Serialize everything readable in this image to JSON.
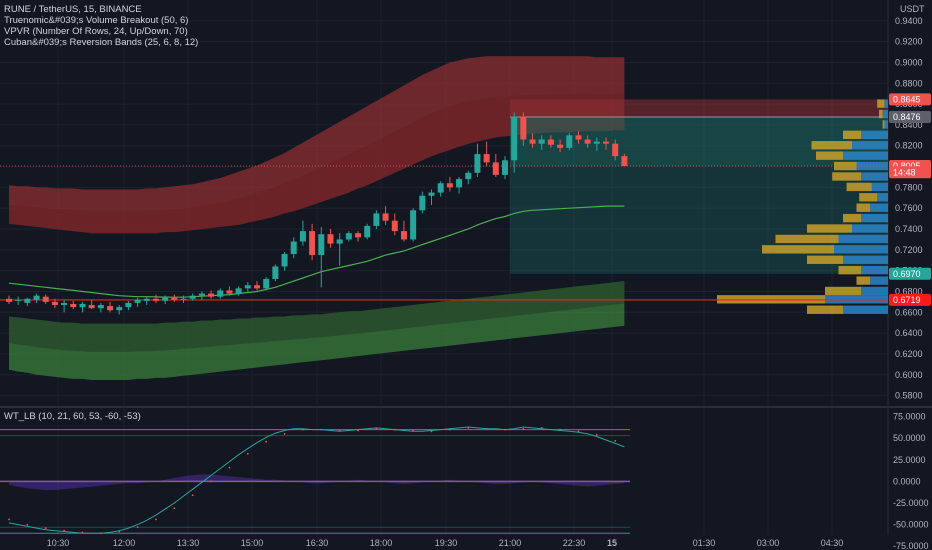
{
  "legend": {
    "symbol_line": "RUNE / TetherUS, 15, BINANCE",
    "ind1": "Truenomic&#039;s Volume Breakout (50, 6)",
    "ind2": "VPVR (Number Of Rows, 24, Up/Down, 70)",
    "ind3": "Cuban&#039;s Reversion Bands (25, 6, 8, 12)",
    "osc": "WT_LB (10, 21, 60, 53, -60, -53)"
  },
  "currency": "USDT",
  "colors": {
    "background": "#131722",
    "up": "#26a69a",
    "down": "#ef5350",
    "grid": "#1e222d",
    "upper_band": "#8c2f33",
    "lower_band": "#3a7d3a",
    "vp_up": "#2a7fc0",
    "vp_down": "#c8a02a",
    "ma_line": "#4caf50",
    "level_line": "#ff1a1a"
  },
  "price_badges": [
    {
      "label": "0.8645",
      "value": 0.8645,
      "color": "#ef5350"
    },
    {
      "label": "0.8476",
      "value": 0.8476,
      "color": "#5d606b"
    },
    {
      "label": "0.8005",
      "value": 0.8005,
      "color": "#ef5350"
    },
    {
      "label": "14:48",
      "value": 0.7945,
      "color": "#ef5350"
    },
    {
      "label": "0.6970",
      "value": 0.697,
      "color": "#26a69a"
    },
    {
      "label": "0.6719",
      "value": 0.6719,
      "color": "#ff1a1a"
    }
  ],
  "chart_data": [
    {
      "type": "candlestick",
      "title": "RUNE / TetherUS, 15, BINANCE",
      "ylim": [
        0.57,
        0.96
      ],
      "y_ticks": [
        "0.9400",
        "0.9200",
        "0.9000",
        "0.8800",
        "0.8600",
        "0.8400",
        "0.8200",
        "0.8000",
        "0.7800",
        "0.7600",
        "0.7400",
        "0.7200",
        "0.7000",
        "0.6800",
        "0.6600",
        "0.6400",
        "0.6200",
        "0.6000",
        "0.5800"
      ],
      "x_ticks": [
        "10:30",
        "12:00",
        "13:30",
        "15:00",
        "16:30",
        "18:00",
        "19:30",
        "21:00",
        "22:30",
        "15",
        "01:30",
        "03:00",
        "04:30"
      ],
      "ohlc": [
        [
          0.673,
          0.676,
          0.668,
          0.67
        ],
        [
          0.671,
          0.675,
          0.667,
          0.672
        ],
        [
          0.669,
          0.674,
          0.666,
          0.673
        ],
        [
          0.672,
          0.678,
          0.669,
          0.676
        ],
        [
          0.675,
          0.677,
          0.668,
          0.67
        ],
        [
          0.67,
          0.673,
          0.664,
          0.667
        ],
        [
          0.667,
          0.672,
          0.66,
          0.669
        ],
        [
          0.668,
          0.671,
          0.663,
          0.665
        ],
        [
          0.665,
          0.67,
          0.66,
          0.668
        ],
        [
          0.667,
          0.672,
          0.663,
          0.664
        ],
        [
          0.664,
          0.669,
          0.66,
          0.667
        ],
        [
          0.666,
          0.67,
          0.66,
          0.662
        ],
        [
          0.662,
          0.667,
          0.658,
          0.665
        ],
        [
          0.665,
          0.671,
          0.662,
          0.669
        ],
        [
          0.669,
          0.674,
          0.665,
          0.672
        ],
        [
          0.671,
          0.675,
          0.667,
          0.673
        ],
        [
          0.673,
          0.677,
          0.669,
          0.671
        ],
        [
          0.671,
          0.676,
          0.668,
          0.674
        ],
        [
          0.674,
          0.677,
          0.67,
          0.672
        ],
        [
          0.672,
          0.676,
          0.669,
          0.673
        ],
        [
          0.673,
          0.678,
          0.671,
          0.676
        ],
        [
          0.676,
          0.68,
          0.672,
          0.678
        ],
        [
          0.678,
          0.681,
          0.673,
          0.675
        ],
        [
          0.675,
          0.683,
          0.673,
          0.681
        ],
        [
          0.681,
          0.685,
          0.676,
          0.678
        ],
        [
          0.678,
          0.685,
          0.676,
          0.683
        ],
        [
          0.683,
          0.689,
          0.68,
          0.686
        ],
        [
          0.686,
          0.69,
          0.681,
          0.683
        ],
        [
          0.683,
          0.694,
          0.681,
          0.692
        ],
        [
          0.692,
          0.706,
          0.69,
          0.704
        ],
        [
          0.704,
          0.718,
          0.7,
          0.716
        ],
        [
          0.716,
          0.732,
          0.712,
          0.728
        ],
        [
          0.728,
          0.748,
          0.724,
          0.738
        ],
        [
          0.738,
          0.745,
          0.71,
          0.715
        ],
        [
          0.715,
          0.742,
          0.684,
          0.735
        ],
        [
          0.735,
          0.74,
          0.722,
          0.726
        ],
        [
          0.726,
          0.736,
          0.705,
          0.73
        ],
        [
          0.73,
          0.738,
          0.728,
          0.736
        ],
        [
          0.736,
          0.738,
          0.728,
          0.732
        ],
        [
          0.732,
          0.745,
          0.73,
          0.743
        ],
        [
          0.743,
          0.758,
          0.74,
          0.755
        ],
        [
          0.755,
          0.762,
          0.744,
          0.748
        ],
        [
          0.748,
          0.755,
          0.734,
          0.738
        ],
        [
          0.738,
          0.748,
          0.728,
          0.73
        ],
        [
          0.73,
          0.76,
          0.728,
          0.758
        ],
        [
          0.758,
          0.776,
          0.755,
          0.772
        ],
        [
          0.772,
          0.778,
          0.763,
          0.775
        ],
        [
          0.775,
          0.786,
          0.771,
          0.784
        ],
        [
          0.784,
          0.79,
          0.776,
          0.78
        ],
        [
          0.78,
          0.79,
          0.774,
          0.788
        ],
        [
          0.788,
          0.796,
          0.783,
          0.794
        ],
        [
          0.794,
          0.822,
          0.79,
          0.812
        ],
        [
          0.812,
          0.824,
          0.8,
          0.804
        ],
        [
          0.804,
          0.812,
          0.79,
          0.792
        ],
        [
          0.792,
          0.81,
          0.788,
          0.806
        ],
        [
          0.806,
          0.852,
          0.794,
          0.848
        ],
        [
          0.848,
          0.852,
          0.82,
          0.826
        ],
        [
          0.826,
          0.832,
          0.818,
          0.822
        ],
        [
          0.822,
          0.83,
          0.816,
          0.826
        ],
        [
          0.826,
          0.83,
          0.818,
          0.821
        ],
        [
          0.821,
          0.826,
          0.814,
          0.818
        ],
        [
          0.818,
          0.832,
          0.816,
          0.83
        ],
        [
          0.83,
          0.834,
          0.822,
          0.826
        ],
        [
          0.826,
          0.83,
          0.818,
          0.822
        ],
        [
          0.822,
          0.828,
          0.815,
          0.824
        ],
        [
          0.824,
          0.828,
          0.816,
          0.822
        ],
        [
          0.822,
          0.826,
          0.806,
          0.81
        ],
        [
          0.81,
          0.812,
          0.8,
          0.8005
        ]
      ],
      "ma_line": [
        0.688,
        0.687,
        0.686,
        0.685,
        0.684,
        0.683,
        0.682,
        0.681,
        0.68,
        0.679,
        0.678,
        0.677,
        0.676,
        0.6755,
        0.675,
        0.675,
        0.6748,
        0.6746,
        0.6745,
        0.6745,
        0.675,
        0.6755,
        0.676,
        0.6765,
        0.677,
        0.678,
        0.679,
        0.68,
        0.682,
        0.684,
        0.687,
        0.69,
        0.693,
        0.696,
        0.699,
        0.701,
        0.703,
        0.705,
        0.707,
        0.709,
        0.712,
        0.715,
        0.717,
        0.719,
        0.722,
        0.725,
        0.728,
        0.731,
        0.734,
        0.737,
        0.74,
        0.744,
        0.747,
        0.75,
        0.752,
        0.755,
        0.757,
        0.758,
        0.7585,
        0.759,
        0.7595,
        0.76,
        0.7605,
        0.761,
        0.7615,
        0.762,
        0.762,
        0.762
      ],
      "upper_band_top": [
        0.782,
        0.781,
        0.781,
        0.78,
        0.78,
        0.779,
        0.779,
        0.779,
        0.778,
        0.778,
        0.778,
        0.778,
        0.778,
        0.778,
        0.778,
        0.779,
        0.779,
        0.78,
        0.781,
        0.782,
        0.783,
        0.785,
        0.787,
        0.789,
        0.792,
        0.795,
        0.798,
        0.801,
        0.805,
        0.809,
        0.813,
        0.818,
        0.823,
        0.828,
        0.833,
        0.838,
        0.843,
        0.848,
        0.853,
        0.858,
        0.863,
        0.868,
        0.873,
        0.878,
        0.883,
        0.888,
        0.892,
        0.896,
        0.9,
        0.902,
        0.904,
        0.905,
        0.906,
        0.906,
        0.906,
        0.906,
        0.906,
        0.906,
        0.906,
        0.906,
        0.906,
        0.906,
        0.906,
        0.906,
        0.905,
        0.905,
        0.905,
        0.905
      ],
      "upper_band_bottom": [
        0.745,
        0.744,
        0.743,
        0.742,
        0.741,
        0.74,
        0.739,
        0.738,
        0.737,
        0.736,
        0.736,
        0.736,
        0.736,
        0.736,
        0.736,
        0.736,
        0.736,
        0.737,
        0.737,
        0.738,
        0.739,
        0.74,
        0.741,
        0.742,
        0.743,
        0.744,
        0.746,
        0.748,
        0.75,
        0.752,
        0.755,
        0.757,
        0.76,
        0.763,
        0.766,
        0.769,
        0.772,
        0.775,
        0.779,
        0.782,
        0.786,
        0.79,
        0.794,
        0.798,
        0.802,
        0.806,
        0.81,
        0.813,
        0.816,
        0.819,
        0.822,
        0.824,
        0.826,
        0.828,
        0.829,
        0.83,
        0.831,
        0.832,
        0.832,
        0.833,
        0.833,
        0.833,
        0.834,
        0.834,
        0.834,
        0.834,
        0.835,
        0.835
      ],
      "lower_band_top": [
        0.656,
        0.655,
        0.654,
        0.653,
        0.652,
        0.651,
        0.65,
        0.65,
        0.649,
        0.649,
        0.649,
        0.649,
        0.649,
        0.649,
        0.649,
        0.649,
        0.649,
        0.65,
        0.65,
        0.651,
        0.651,
        0.652,
        0.652,
        0.653,
        0.653,
        0.654,
        0.654,
        0.655,
        0.655,
        0.656,
        0.656,
        0.657,
        0.657,
        0.658,
        0.658,
        0.659,
        0.66,
        0.661,
        0.661,
        0.662,
        0.663,
        0.664,
        0.665,
        0.666,
        0.667,
        0.668,
        0.669,
        0.67,
        0.671,
        0.672,
        0.673,
        0.674,
        0.675,
        0.676,
        0.677,
        0.678,
        0.679,
        0.68,
        0.681,
        0.682,
        0.683,
        0.684,
        0.685,
        0.686,
        0.687,
        0.688,
        0.689,
        0.69
      ],
      "lower_band_bottom": [
        0.605,
        0.603,
        0.602,
        0.6,
        0.599,
        0.598,
        0.597,
        0.596,
        0.596,
        0.595,
        0.595,
        0.595,
        0.595,
        0.595,
        0.596,
        0.596,
        0.597,
        0.597,
        0.598,
        0.599,
        0.6,
        0.601,
        0.602,
        0.603,
        0.604,
        0.605,
        0.606,
        0.607,
        0.608,
        0.609,
        0.61,
        0.611,
        0.612,
        0.613,
        0.614,
        0.615,
        0.616,
        0.617,
        0.618,
        0.619,
        0.62,
        0.621,
        0.622,
        0.623,
        0.624,
        0.625,
        0.626,
        0.627,
        0.628,
        0.629,
        0.63,
        0.631,
        0.632,
        0.633,
        0.634,
        0.635,
        0.636,
        0.637,
        0.638,
        0.639,
        0.64,
        0.641,
        0.642,
        0.643,
        0.644,
        0.645,
        0.646,
        0.647
      ],
      "volume_profile": [
        {
          "price": 0.86,
          "up": 0.004,
          "down": 0.008
        },
        {
          "price": 0.85,
          "up": 0.006,
          "down": 0.004
        },
        {
          "price": 0.84,
          "up": 0.004,
          "down": 0.002
        },
        {
          "price": 0.83,
          "up": 0.03,
          "down": 0.02
        },
        {
          "price": 0.82,
          "up": 0.04,
          "down": 0.045
        },
        {
          "price": 0.81,
          "up": 0.05,
          "down": 0.03
        },
        {
          "price": 0.8,
          "up": 0.035,
          "down": 0.025
        },
        {
          "price": 0.79,
          "up": 0.03,
          "down": 0.032
        },
        {
          "price": 0.78,
          "up": 0.018,
          "down": 0.028
        },
        {
          "price": 0.77,
          "up": 0.012,
          "down": 0.02
        },
        {
          "price": 0.76,
          "up": 0.02,
          "down": 0.015
        },
        {
          "price": 0.75,
          "up": 0.03,
          "down": 0.02
        },
        {
          "price": 0.74,
          "up": 0.04,
          "down": 0.05
        },
        {
          "price": 0.73,
          "up": 0.055,
          "down": 0.07
        },
        {
          "price": 0.72,
          "up": 0.06,
          "down": 0.08
        },
        {
          "price": 0.71,
          "up": 0.05,
          "down": 0.04
        },
        {
          "price": 0.7,
          "up": 0.03,
          "down": 0.025
        },
        {
          "price": 0.69,
          "up": 0.02,
          "down": 0.015
        },
        {
          "price": 0.68,
          "up": 0.03,
          "down": 0.04
        },
        {
          "price": 0.672,
          "up": 0.07,
          "down": 0.12
        },
        {
          "price": 0.662,
          "up": 0.05,
          "down": 0.04
        }
      ],
      "levels": [
        0.6719,
        0.8005,
        0.8476,
        0.8645
      ]
    },
    {
      "type": "line",
      "title": "WT_LB (10, 21, 60, 53, -60, -53)",
      "ylim": [
        -62,
        85
      ],
      "y_ticks": [
        "75.0000",
        "50.0000",
        "25.0000",
        "0.0000",
        "-25.0000",
        "-50.0000",
        "-75.0000"
      ],
      "levels": [
        60,
        53,
        -60,
        -53
      ],
      "series": [
        {
          "values": [
            -48,
            -50,
            -52,
            -54,
            -56,
            -57,
            -58,
            -59,
            -60,
            -60,
            -60,
            -59,
            -57,
            -54,
            -50,
            -45,
            -39,
            -32,
            -25,
            -17,
            -9,
            -1,
            7,
            15,
            23,
            31,
            38,
            45,
            51,
            56,
            59,
            61,
            61,
            60,
            60,
            59,
            58,
            59,
            60,
            61,
            62,
            61,
            60,
            59,
            58,
            58,
            59,
            60,
            61,
            62,
            63,
            62,
            61,
            61,
            60,
            61,
            63,
            62,
            61,
            60,
            59,
            58,
            57,
            55,
            52,
            48,
            44,
            40
          ]
        },
        {
          "values": [
            -44,
            -47,
            -50,
            -52,
            -54,
            -56,
            -57,
            -58,
            -59,
            -60,
            -60,
            -59,
            -58,
            -56,
            -53,
            -49,
            -44,
            -38,
            -31,
            -24,
            -16,
            -8,
            0,
            8,
            16,
            24,
            32,
            39,
            46,
            51,
            55,
            58,
            60,
            60,
            60,
            59,
            59,
            59,
            59,
            60,
            61,
            61,
            60,
            60,
            59,
            58,
            58,
            59,
            60,
            61,
            62,
            62,
            61,
            61,
            60,
            60,
            61,
            62,
            62,
            61,
            60,
            59,
            58,
            56,
            54,
            51,
            47,
            44
          ]
        }
      ]
    }
  ]
}
